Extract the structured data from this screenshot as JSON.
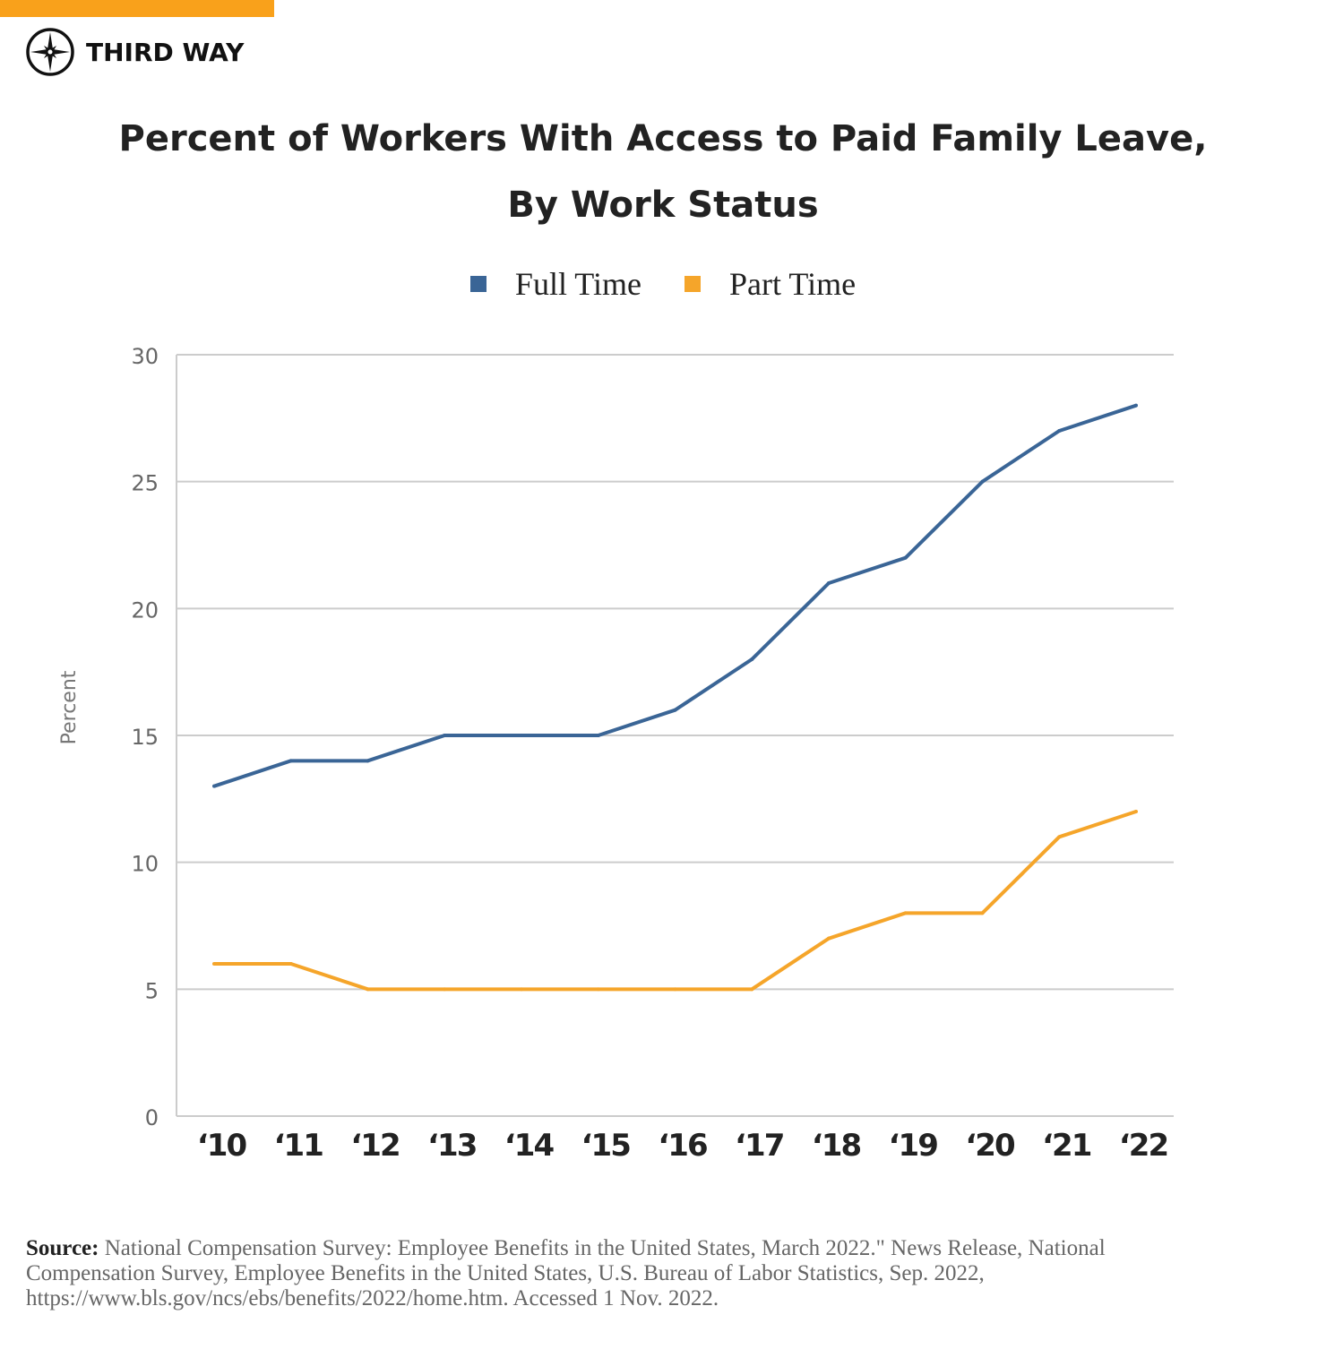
{
  "brand": {
    "name": "THIRD WAY",
    "bar_color": "#f9a11b"
  },
  "chart_data": {
    "type": "line",
    "title": [
      "Percent of Workers With Access to Paid Family Leave,",
      "By Work Status"
    ],
    "ylabel": "Percent",
    "xlabel": "",
    "ylim": [
      0,
      30
    ],
    "yticks": [
      0,
      5,
      10,
      15,
      20,
      25,
      30
    ],
    "grid": true,
    "legend": "top",
    "categories": [
      "‘10",
      "‘11",
      "‘12",
      "‘13",
      "‘14",
      "‘15",
      "‘16",
      "‘17",
      "‘18",
      "‘19",
      "‘20",
      "‘21",
      "‘22"
    ],
    "series": [
      {
        "name": "Full Time",
        "color": "#3a6596",
        "values": [
          13,
          14,
          14,
          15,
          15,
          15,
          16,
          18,
          21,
          22,
          25,
          27,
          28
        ]
      },
      {
        "name": "Part Time",
        "color": "#f5a52a",
        "values": [
          6,
          6,
          5,
          5,
          5,
          5,
          5,
          5,
          7,
          8,
          8,
          11,
          12
        ]
      }
    ]
  },
  "source": {
    "label": "Source:",
    "lines": [
      "National Compensation Survey: Employee Benefits in the United States, March 2022.\" News Release, National",
      "Compensation Survey, Employee Benefits in the United States, U.S. Bureau of Labor Statistics, Sep. 2022,",
      "https://www.bls.gov/ncs/ebs/benefits/2022/home.htm. Accessed 1 Nov. 2022."
    ]
  }
}
